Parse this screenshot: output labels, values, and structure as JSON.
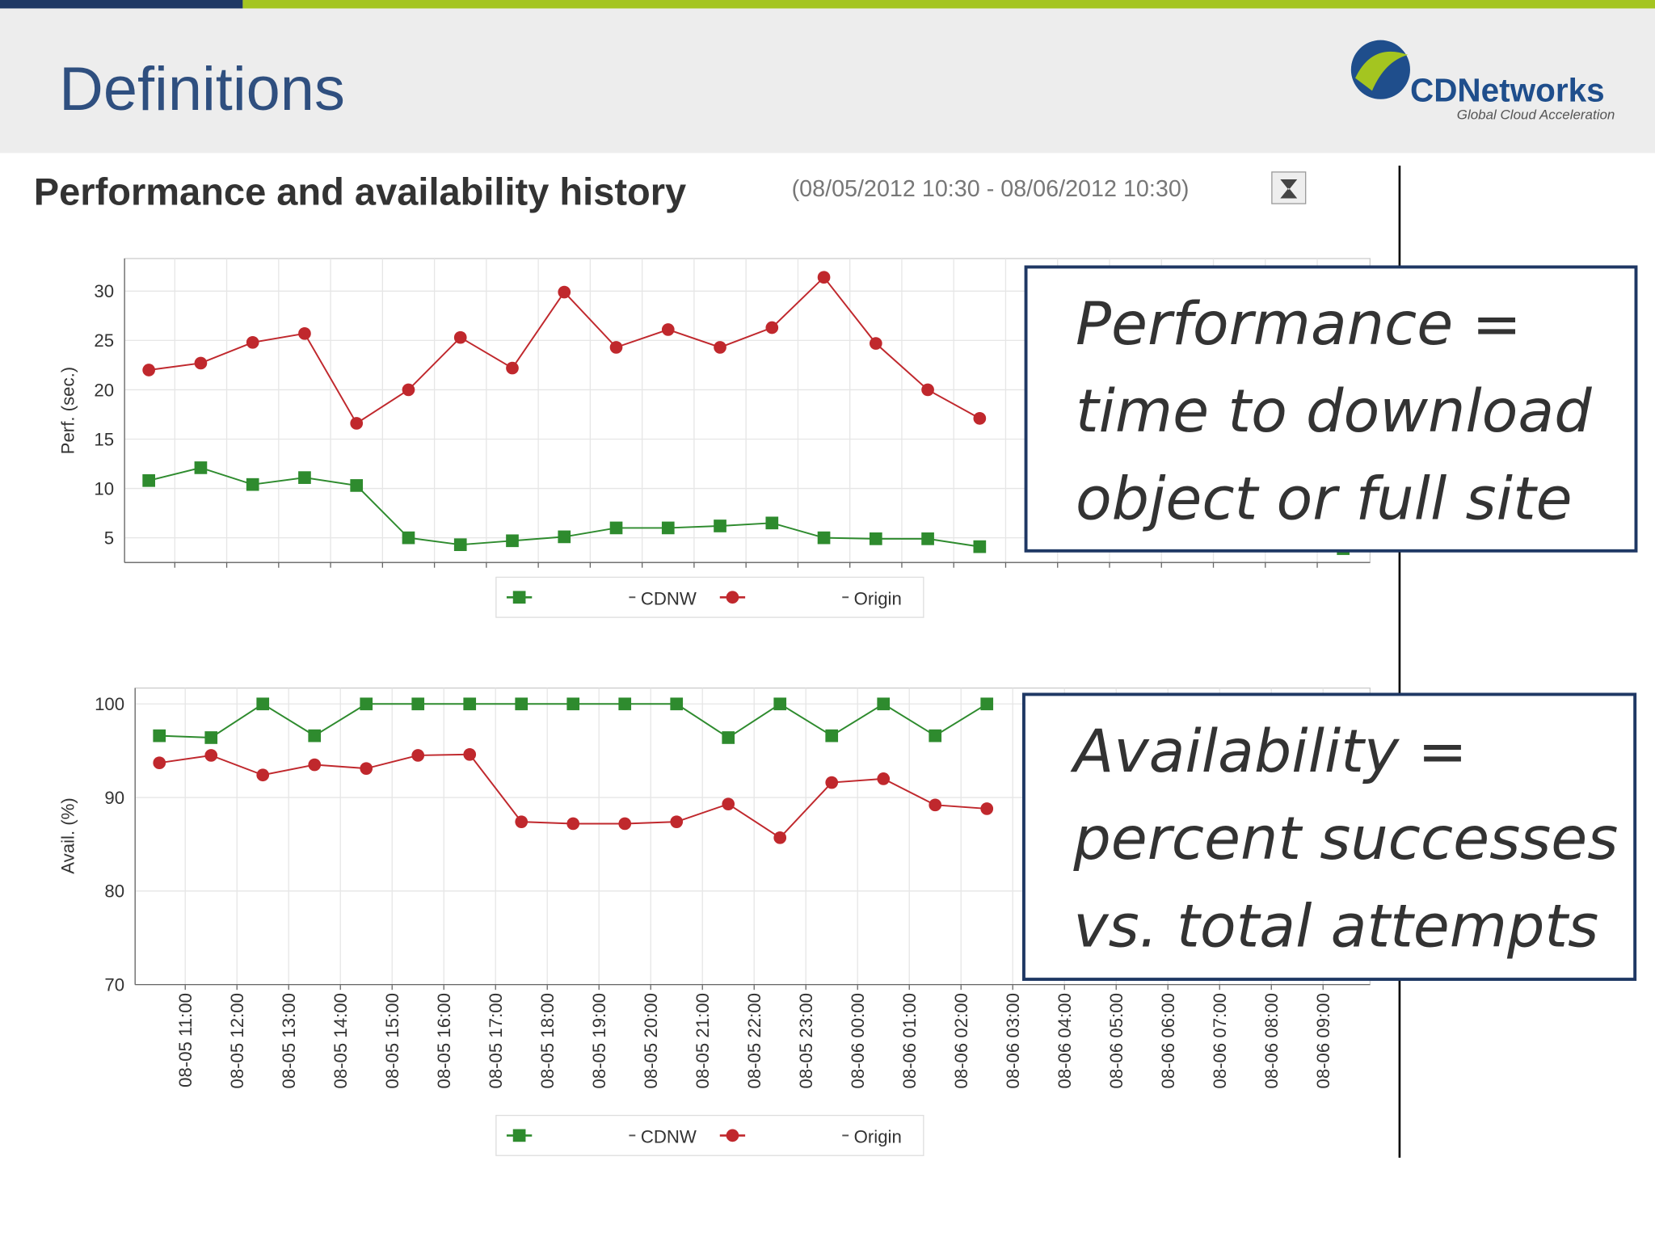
{
  "header": {
    "title": "Definitions",
    "logo_name": "CDNetworks",
    "logo_tagline": "Global Cloud Acceleration"
  },
  "panel": {
    "title": "Performance and availability history",
    "range": "(08/05/2012 10:30 - 08/06/2012 10:30)"
  },
  "chart_data": [
    {
      "type": "line",
      "ylabel": "Perf. (sec.)",
      "ylim": [
        2.5,
        33.3
      ],
      "yticks": [
        5,
        10,
        15,
        20,
        25,
        30
      ],
      "grid": true,
      "series": [
        {
          "name": "CDNW",
          "color": "#2e8b2e",
          "marker": "square",
          "values": [
            10.8,
            12.1,
            10.4,
            11.1,
            10.3,
            5.0,
            4.3,
            4.7,
            5.1,
            6.0,
            6.0,
            6.2,
            6.5,
            5.0,
            4.9,
            4.9,
            4.1,
            null,
            null,
            null,
            null,
            null,
            null,
            3.9
          ]
        },
        {
          "name": "Origin",
          "color": "#c0282d",
          "marker": "circle",
          "values": [
            22.0,
            22.7,
            24.8,
            25.7,
            16.6,
            20.0,
            25.3,
            22.2,
            29.9,
            24.3,
            26.1,
            24.3,
            26.3,
            31.4,
            24.7,
            20.0,
            17.1,
            null,
            null,
            null,
            null,
            null,
            null,
            null
          ]
        }
      ]
    },
    {
      "type": "line",
      "ylabel": "Avail. (%)",
      "ylim": [
        70,
        101.7
      ],
      "yticks": [
        70,
        80,
        90,
        100
      ],
      "grid": true,
      "categories": [
        "08-05 11:00",
        "08-05 12:00",
        "08-05 13:00",
        "08-05 14:00",
        "08-05 15:00",
        "08-05 16:00",
        "08-05 17:00",
        "08-05 18:00",
        "08-05 19:00",
        "08-05 20:00",
        "08-05 21:00",
        "08-05 22:00",
        "08-05 23:00",
        "08-06 00:00",
        "08-06 01:00",
        "08-06 02:00",
        "08-06 03:00",
        "08-06 04:00",
        "08-06 05:00",
        "08-06 06:00",
        "08-06 07:00",
        "08-06 08:00",
        "08-06 09:00",
        null
      ],
      "series": [
        {
          "name": "CDNW",
          "color": "#2e8b2e",
          "marker": "square",
          "values": [
            96.6,
            96.4,
            100,
            96.6,
            100,
            100,
            100,
            100,
            100,
            100,
            100,
            96.4,
            100,
            96.6,
            100,
            96.6,
            100,
            null,
            null,
            null,
            null,
            null,
            null,
            null
          ]
        },
        {
          "name": "Origin",
          "color": "#c0282d",
          "marker": "circle",
          "values": [
            93.7,
            94.5,
            92.4,
            93.5,
            93.1,
            94.5,
            94.6,
            87.4,
            87.2,
            87.2,
            87.4,
            89.3,
            85.7,
            91.6,
            92.0,
            89.2,
            88.8,
            null,
            null,
            null,
            null,
            null,
            null,
            null
          ]
        }
      ]
    }
  ],
  "callouts": [
    {
      "lines": [
        "Performance =",
        "time to download",
        "object or full site"
      ]
    },
    {
      "lines": [
        "Availability =",
        "percent successes",
        "vs. total attempts"
      ]
    }
  ]
}
